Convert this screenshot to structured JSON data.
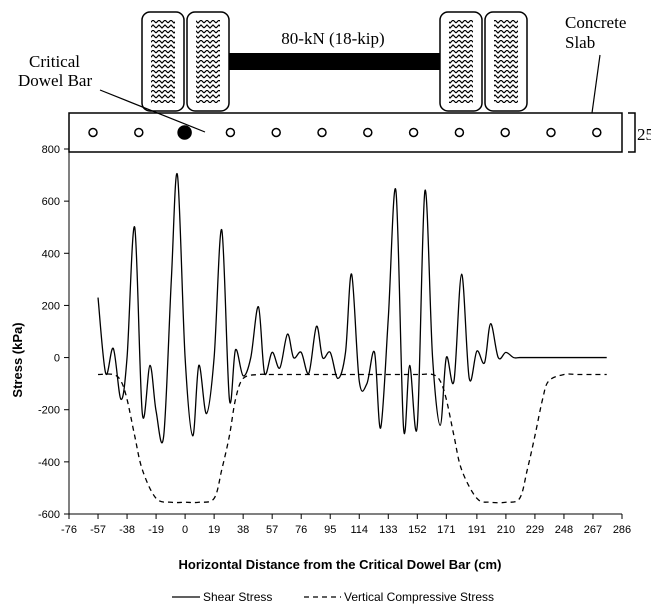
{
  "diagram": {
    "load_label": "80-kN (18-kip)",
    "slab_label_line1": "Concrete",
    "slab_label_line2": "Slab",
    "critical_label_line1": "Critical",
    "critical_label_line2": "Dowel Bar",
    "slab_thickness_label": "25",
    "dowel_count": 12,
    "critical_dowel_index": 2
  },
  "chart_data": {
    "type": "line",
    "title": "",
    "xlabel": "Horizontal Distance from the Critical Dowel Bar (cm)",
    "ylabel": "Stress (kPa)",
    "x_ticks": [
      -76,
      -57,
      -38,
      -19,
      0,
      19,
      38,
      57,
      76,
      95,
      114,
      133,
      152,
      171,
      191,
      210,
      229,
      248,
      267,
      286
    ],
    "y_ticks": [
      800,
      600,
      400,
      200,
      0,
      -200,
      -400,
      -600
    ],
    "xlim": [
      -76,
      286
    ],
    "ylim": [
      -600,
      800
    ],
    "grid": false,
    "legend_position": "bottom",
    "series": [
      {
        "name": "Shear Stress",
        "style": "solid",
        "color": "#000000",
        "x": [
          -57,
          -52,
          -47,
          -42,
          -38,
          -33,
          -28,
          -23,
          -19,
          -14,
          -9,
          -5,
          0,
          5,
          9,
          14,
          19,
          24,
          29,
          33,
          38,
          43,
          48,
          52,
          57,
          62,
          67,
          71,
          76,
          81,
          86,
          90,
          95,
          100,
          105,
          109,
          114,
          119,
          124,
          128,
          133,
          138,
          143,
          147,
          152,
          157,
          162,
          167,
          171,
          176,
          181,
          186,
          191,
          196,
          200,
          205,
          210,
          215,
          219,
          224,
          229,
          234,
          238,
          243,
          248,
          253,
          257,
          262,
          267,
          272,
          276
        ],
        "y": [
          230,
          -60,
          35,
          -160,
          0,
          500,
          -215,
          -30,
          -205,
          -300,
          300,
          700,
          0,
          -300,
          -30,
          -215,
          0,
          490,
          -160,
          30,
          -70,
          0,
          195,
          -60,
          20,
          -40,
          90,
          0,
          20,
          -60,
          120,
          0,
          20,
          -80,
          20,
          320,
          -90,
          -100,
          20,
          -270,
          150,
          640,
          -270,
          -30,
          -260,
          640,
          0,
          -260,
          0,
          -90,
          320,
          -80,
          25,
          -20,
          130,
          0,
          20,
          0,
          0,
          0,
          0,
          0,
          0,
          0,
          0,
          0,
          0,
          0,
          0,
          0,
          0
        ]
      },
      {
        "name": "Vertical Compressive Stress",
        "style": "dashed",
        "color": "#000000",
        "x": [
          -57,
          -47,
          -42,
          -38,
          -33,
          -28,
          -19,
          -9,
          0,
          9,
          19,
          24,
          29,
          33,
          38,
          48,
          57,
          76,
          95,
          114,
          133,
          152,
          162,
          167,
          171,
          176,
          181,
          191,
          200,
          210,
          219,
          224,
          229,
          234,
          238,
          248,
          257,
          267,
          276
        ],
        "y": [
          -65,
          -65,
          -90,
          -160,
          -300,
          -430,
          -540,
          -555,
          -555,
          -555,
          -540,
          -430,
          -300,
          -160,
          -80,
          -65,
          -65,
          -65,
          -65,
          -65,
          -65,
          -65,
          -65,
          -90,
          -160,
          -300,
          -430,
          -540,
          -555,
          -555,
          -540,
          -430,
          -300,
          -160,
          -90,
          -65,
          -65,
          -65,
          -65
        ]
      }
    ]
  }
}
